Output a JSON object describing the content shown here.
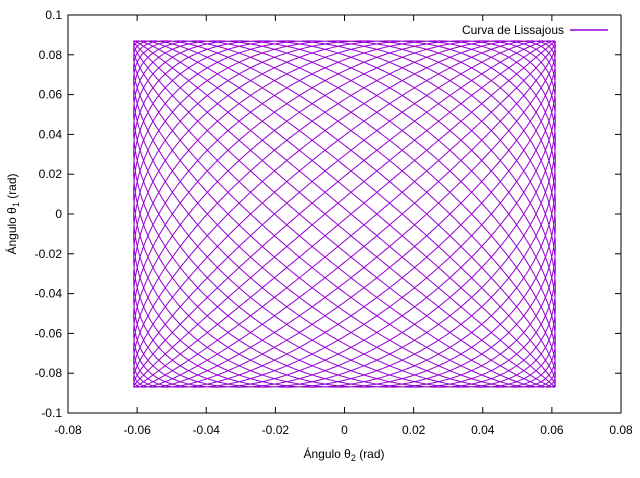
{
  "chart_data": {
    "type": "line",
    "title": "",
    "xlabel": {
      "prefix": "Ángulo θ",
      "sub": "2",
      "suffix": " (rad)"
    },
    "ylabel": {
      "prefix": "Ángulo θ",
      "sub": "1",
      "suffix": " (rad)"
    },
    "xlim": [
      -0.08,
      0.08
    ],
    "ylim": [
      -0.1,
      0.1
    ],
    "xticks": [
      -0.08,
      -0.06,
      -0.04,
      -0.02,
      0,
      0.02,
      0.04,
      0.06,
      0.08
    ],
    "yticks": [
      -0.1,
      -0.08,
      -0.06,
      -0.04,
      -0.02,
      0,
      0.02,
      0.04,
      0.06,
      0.08,
      0.1
    ],
    "xtick_labels": [
      "-0.08",
      "-0.06",
      "-0.04",
      "-0.02",
      "0",
      "0.02",
      "0.04",
      "0.06",
      "0.08"
    ],
    "ytick_labels": [
      "-0.1",
      "-0.08",
      "-0.06",
      "-0.04",
      "-0.02",
      "0",
      "0.02",
      "0.04",
      "0.06",
      "0.08",
      "0.1"
    ],
    "grid": false,
    "legend_position": "top-right",
    "series": [
      {
        "name": "Curva de Lissajous",
        "color": "#9400d3",
        "curve": "lissajous",
        "x_amplitude": 0.061,
        "y_amplitude": 0.087,
        "x_frequency": 1.0,
        "y_frequency": 1.02,
        "duration_cycles": 50
      }
    ]
  }
}
